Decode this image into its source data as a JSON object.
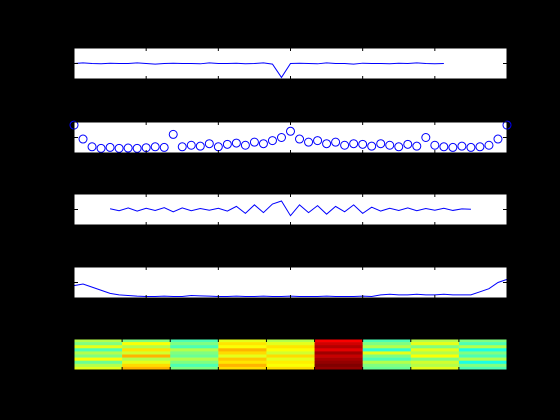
{
  "chart_data": [
    {
      "type": "line",
      "color": "#0000ff",
      "xlim": [
        0,
        48
      ],
      "xticks": [
        0,
        8,
        16,
        24,
        32,
        40,
        48
      ],
      "ylim": [
        0,
        1
      ],
      "yticks": [
        0.5
      ],
      "x": [
        0,
        1,
        2,
        3,
        4,
        5,
        6,
        7,
        8,
        9,
        10,
        11,
        12,
        13,
        14,
        15,
        16,
        17,
        18,
        19,
        20,
        21,
        22,
        23,
        24,
        25,
        26,
        27,
        28,
        29,
        30,
        31,
        32,
        33,
        34,
        35,
        36,
        37,
        38,
        39,
        40,
        41,
        42,
        43,
        44,
        45,
        46,
        47,
        48
      ],
      "values": [
        0.5,
        0.52,
        0.5,
        0.49,
        0.51,
        0.5,
        0.5,
        0.52,
        0.5,
        0.48,
        0.5,
        0.51,
        0.5,
        0.5,
        0.49,
        0.52,
        0.5,
        0.5,
        0.51,
        0.49,
        0.5,
        0.52,
        0.48,
        0.05,
        0.5,
        0.51,
        0.5,
        0.49,
        0.52,
        0.5,
        0.5,
        0.48,
        0.51,
        0.5,
        0.5,
        0.49,
        0.51,
        0.5,
        0.52,
        0.5,
        0.49,
        0.5,
        null,
        null,
        null,
        null,
        null,
        null,
        null
      ]
    },
    {
      "type": "scatter",
      "color": "#0000ff",
      "xlim": [
        0,
        48
      ],
      "xticks": [
        0,
        8,
        16,
        24,
        32,
        40,
        48
      ],
      "ylim": [
        0,
        1
      ],
      "yticks": [
        0.5
      ],
      "x": [
        0,
        1,
        2,
        3,
        4,
        5,
        6,
        7,
        8,
        9,
        10,
        11,
        12,
        13,
        14,
        15,
        16,
        17,
        18,
        19,
        20,
        21,
        22,
        23,
        24,
        25,
        26,
        27,
        28,
        29,
        30,
        31,
        32,
        33,
        34,
        35,
        36,
        37,
        38,
        39,
        40,
        41,
        42,
        43,
        44,
        45,
        46,
        47,
        48
      ],
      "values": [
        0.9,
        0.45,
        0.2,
        0.15,
        0.18,
        0.15,
        0.16,
        0.15,
        0.17,
        0.2,
        0.18,
        0.6,
        0.2,
        0.25,
        0.22,
        0.3,
        0.2,
        0.28,
        0.32,
        0.25,
        0.35,
        0.3,
        0.4,
        0.5,
        0.7,
        0.45,
        0.35,
        0.4,
        0.3,
        0.35,
        0.25,
        0.3,
        0.28,
        0.22,
        0.3,
        0.25,
        0.2,
        0.28,
        0.22,
        0.5,
        0.25,
        0.2,
        0.18,
        0.22,
        0.18,
        0.2,
        0.25,
        0.45,
        0.9
      ]
    },
    {
      "type": "line",
      "color": "#0000ff",
      "xlim": [
        0,
        48
      ],
      "xticks": [
        0,
        8,
        16,
        24,
        32,
        40,
        48
      ],
      "ylim": [
        -1,
        1
      ],
      "yticks": [
        0
      ],
      "x": [
        0,
        1,
        2,
        3,
        4,
        5,
        6,
        7,
        8,
        9,
        10,
        11,
        12,
        13,
        14,
        15,
        16,
        17,
        18,
        19,
        20,
        21,
        22,
        23,
        24,
        25,
        26,
        27,
        28,
        29,
        30,
        31,
        32,
        33,
        34,
        35,
        36,
        37,
        38,
        39,
        40,
        41,
        42,
        43,
        44,
        45,
        46,
        47,
        48
      ],
      "values": [
        null,
        null,
        null,
        null,
        0.05,
        -0.08,
        0.1,
        -0.1,
        0.08,
        -0.06,
        0.12,
        -0.15,
        0.1,
        -0.08,
        0.06,
        -0.05,
        0.08,
        -0.1,
        0.2,
        -0.25,
        0.3,
        -0.2,
        0.35,
        0.55,
        -0.4,
        0.3,
        -0.2,
        0.25,
        -0.3,
        0.2,
        -0.15,
        0.3,
        -0.25,
        0.15,
        -0.1,
        0.08,
        -0.06,
        0.1,
        -0.08,
        0.06,
        -0.05,
        0.08,
        -0.06,
        0.04,
        0.02,
        null,
        null,
        null,
        null
      ]
    },
    {
      "type": "line",
      "color": "#0000ff",
      "xlim": [
        0,
        48
      ],
      "xticks": [
        0,
        8,
        16,
        24,
        32,
        40,
        48
      ],
      "ylim": [
        0,
        1
      ],
      "yticks": [
        0.5
      ],
      "x": [
        0,
        1,
        2,
        3,
        4,
        5,
        6,
        7,
        8,
        9,
        10,
        11,
        12,
        13,
        14,
        15,
        16,
        17,
        18,
        19,
        20,
        21,
        22,
        23,
        24,
        25,
        26,
        27,
        28,
        29,
        30,
        31,
        32,
        33,
        34,
        35,
        36,
        37,
        38,
        39,
        40,
        41,
        42,
        43,
        44,
        45,
        46,
        47,
        48
      ],
      "values": [
        0.4,
        0.45,
        0.35,
        0.25,
        0.15,
        0.1,
        0.08,
        0.06,
        0.05,
        0.05,
        0.06,
        0.05,
        0.05,
        0.08,
        0.07,
        0.06,
        0.05,
        0.05,
        0.06,
        0.05,
        0.05,
        0.06,
        0.05,
        0.05,
        0.06,
        0.05,
        0.05,
        0.05,
        0.06,
        0.05,
        0.05,
        0.05,
        0.06,
        0.05,
        0.1,
        0.12,
        0.1,
        0.1,
        0.12,
        0.1,
        0.1,
        0.12,
        0.1,
        0.1,
        0.1,
        0.2,
        0.3,
        0.5,
        0.6
      ]
    },
    {
      "type": "heatmap",
      "xlim": [
        0,
        9
      ],
      "xticks": [
        0,
        1,
        2,
        3,
        4,
        5,
        6,
        7,
        8,
        9
      ],
      "clim": [
        0,
        1
      ],
      "z": [
        [
          0.55,
          0.5,
          0.45,
          0.6,
          0.55,
          0.88,
          0.45,
          0.55,
          0.5
        ],
        [
          0.5,
          0.62,
          0.5,
          0.65,
          0.6,
          0.92,
          0.5,
          0.6,
          0.45
        ],
        [
          0.6,
          0.55,
          0.45,
          0.62,
          0.65,
          0.95,
          0.55,
          0.5,
          0.55
        ],
        [
          0.45,
          0.65,
          0.55,
          0.7,
          0.62,
          0.9,
          0.42,
          0.6,
          0.4
        ],
        [
          0.55,
          0.58,
          0.5,
          0.66,
          0.58,
          0.97,
          0.6,
          0.55,
          0.5
        ],
        [
          0.5,
          0.7,
          0.48,
          0.6,
          0.66,
          0.93,
          0.5,
          0.62,
          0.45
        ],
        [
          0.62,
          0.55,
          0.55,
          0.68,
          0.6,
          0.96,
          0.45,
          0.5,
          0.55
        ],
        [
          0.48,
          0.6,
          0.5,
          0.65,
          0.64,
          0.98,
          0.55,
          0.58,
          0.4
        ],
        [
          0.55,
          0.66,
          0.45,
          0.7,
          0.62,
          1.0,
          0.5,
          0.55,
          0.5
        ],
        [
          0.6,
          0.7,
          0.5,
          0.66,
          0.66,
          0.98,
          0.48,
          0.6,
          0.45
        ]
      ]
    }
  ]
}
